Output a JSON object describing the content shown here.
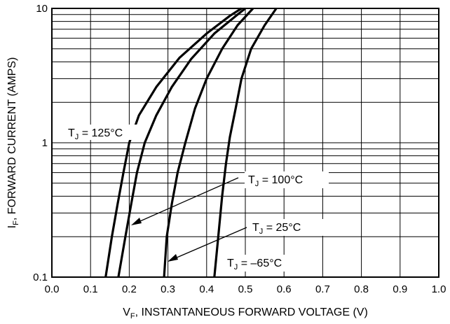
{
  "chart_data": {
    "type": "line",
    "title": "",
    "xlabel": {
      "main": "V",
      "sub": "F",
      "rest": ", INSTANTANEOUS FORWARD VOLTAGE (V)"
    },
    "ylabel": {
      "main": "I",
      "sub": "F",
      "rest": ", FORWARD CURRENT (AMPS)"
    },
    "xlim": [
      0.0,
      1.0
    ],
    "ylim": [
      0.1,
      10
    ],
    "yscale": "log",
    "grid": true,
    "legend": "none",
    "x_ticks": [
      "0.0",
      "0.1",
      "0.2",
      "0.3",
      "0.4",
      "0.5",
      "0.6",
      "0.7",
      "0.8",
      "0.9",
      "1.0"
    ],
    "y_ticks": [
      {
        "value": 0.1,
        "label": "0.1"
      },
      {
        "value": 1,
        "label": "1"
      },
      {
        "value": 10,
        "label": "10"
      }
    ],
    "series": [
      {
        "name": "TJ = 125°C",
        "points": [
          [
            0.139,
            0.1
          ],
          [
            0.155,
            0.2
          ],
          [
            0.17,
            0.35
          ],
          [
            0.185,
            0.6
          ],
          [
            0.2,
            1.0
          ],
          [
            0.225,
            1.6
          ],
          [
            0.27,
            2.6
          ],
          [
            0.33,
            4.3
          ],
          [
            0.4,
            6.5
          ],
          [
            0.46,
            8.8
          ],
          [
            0.49,
            10
          ]
        ]
      },
      {
        "name": "TJ = 100°C",
        "points": [
          [
            0.172,
            0.1
          ],
          [
            0.19,
            0.2
          ],
          [
            0.205,
            0.35
          ],
          [
            0.22,
            0.6
          ],
          [
            0.24,
            1.0
          ],
          [
            0.27,
            1.6
          ],
          [
            0.31,
            2.6
          ],
          [
            0.36,
            4.2
          ],
          [
            0.42,
            6.5
          ],
          [
            0.48,
            9.0
          ],
          [
            0.5,
            10
          ]
        ]
      },
      {
        "name": "TJ = 25°C",
        "points": [
          [
            0.29,
            0.1
          ],
          [
            0.297,
            0.2
          ],
          [
            0.31,
            0.35
          ],
          [
            0.325,
            0.6
          ],
          [
            0.345,
            1.0
          ],
          [
            0.37,
            1.8
          ],
          [
            0.4,
            3.0
          ],
          [
            0.44,
            5.0
          ],
          [
            0.48,
            7.5
          ],
          [
            0.52,
            10
          ]
        ]
      },
      {
        "name": "TJ = –65°C",
        "points": [
          [
            0.42,
            0.1
          ],
          [
            0.43,
            0.2
          ],
          [
            0.44,
            0.4
          ],
          [
            0.45,
            0.7
          ],
          [
            0.46,
            1.1
          ],
          [
            0.475,
            1.8
          ],
          [
            0.49,
            3.0
          ],
          [
            0.515,
            5.0
          ],
          [
            0.55,
            7.5
          ],
          [
            0.58,
            10
          ]
        ]
      }
    ],
    "annotations": [
      {
        "main": "T",
        "sub": "J",
        "rest": " = 125°C"
      },
      {
        "main": "T",
        "sub": "J",
        "rest": " = 100°C"
      },
      {
        "main": "T",
        "sub": "J",
        "rest": " = 25°C"
      },
      {
        "main": "T",
        "sub": "J",
        "rest": " = –65°C"
      }
    ]
  }
}
